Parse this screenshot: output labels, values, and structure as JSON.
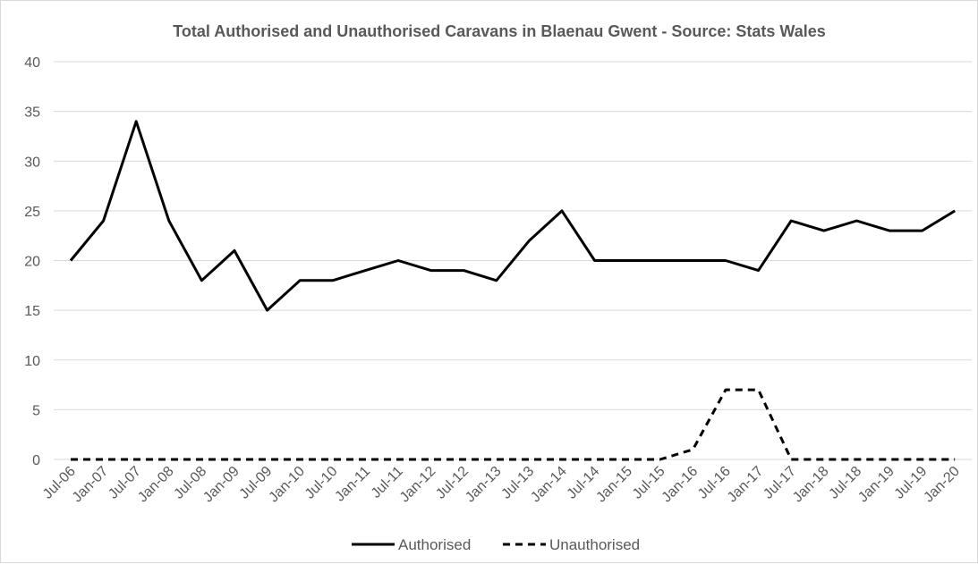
{
  "chart_data": {
    "type": "line",
    "title": "Total Authorised and Unauthorised Caravans in Blaenau Gwent - Source: Stats Wales",
    "xlabel": "",
    "ylabel": "",
    "ylim": [
      0,
      40
    ],
    "yticks": [
      0,
      5,
      10,
      15,
      20,
      25,
      30,
      35,
      40
    ],
    "grid": true,
    "legend_position": "bottom",
    "categories": [
      "Jul-06",
      "Jan-07",
      "Jul-07",
      "Jan-08",
      "Jul-08",
      "Jan-09",
      "Jul-09",
      "Jan-10",
      "Jul-10",
      "Jan-11",
      "Jul-11",
      "Jan-12",
      "Jul-12",
      "Jan-13",
      "Jul-13",
      "Jan-14",
      "Jul-14",
      "Jan-15",
      "Jul-15",
      "Jan-16",
      "Jul-16",
      "Jan-17",
      "Jul-17",
      "Jan-18",
      "Jul-18",
      "Jan-19",
      "Jul-19",
      "Jan-20"
    ],
    "series": [
      {
        "name": "Authorised",
        "style": "solid",
        "color": "#000000",
        "values": [
          20,
          24,
          34,
          24,
          18,
          21,
          15,
          18,
          18,
          19,
          20,
          19,
          19,
          18,
          22,
          25,
          20,
          20,
          20,
          20,
          20,
          19,
          24,
          23,
          24,
          23,
          23,
          25
        ]
      },
      {
        "name": "Unauthorised",
        "style": "dashed",
        "color": "#000000",
        "values": [
          0,
          0,
          0,
          0,
          0,
          0,
          0,
          0,
          0,
          0,
          0,
          0,
          0,
          0,
          0,
          0,
          0,
          0,
          0,
          1,
          7,
          7,
          0,
          0,
          0,
          0,
          0,
          0
        ]
      }
    ]
  }
}
